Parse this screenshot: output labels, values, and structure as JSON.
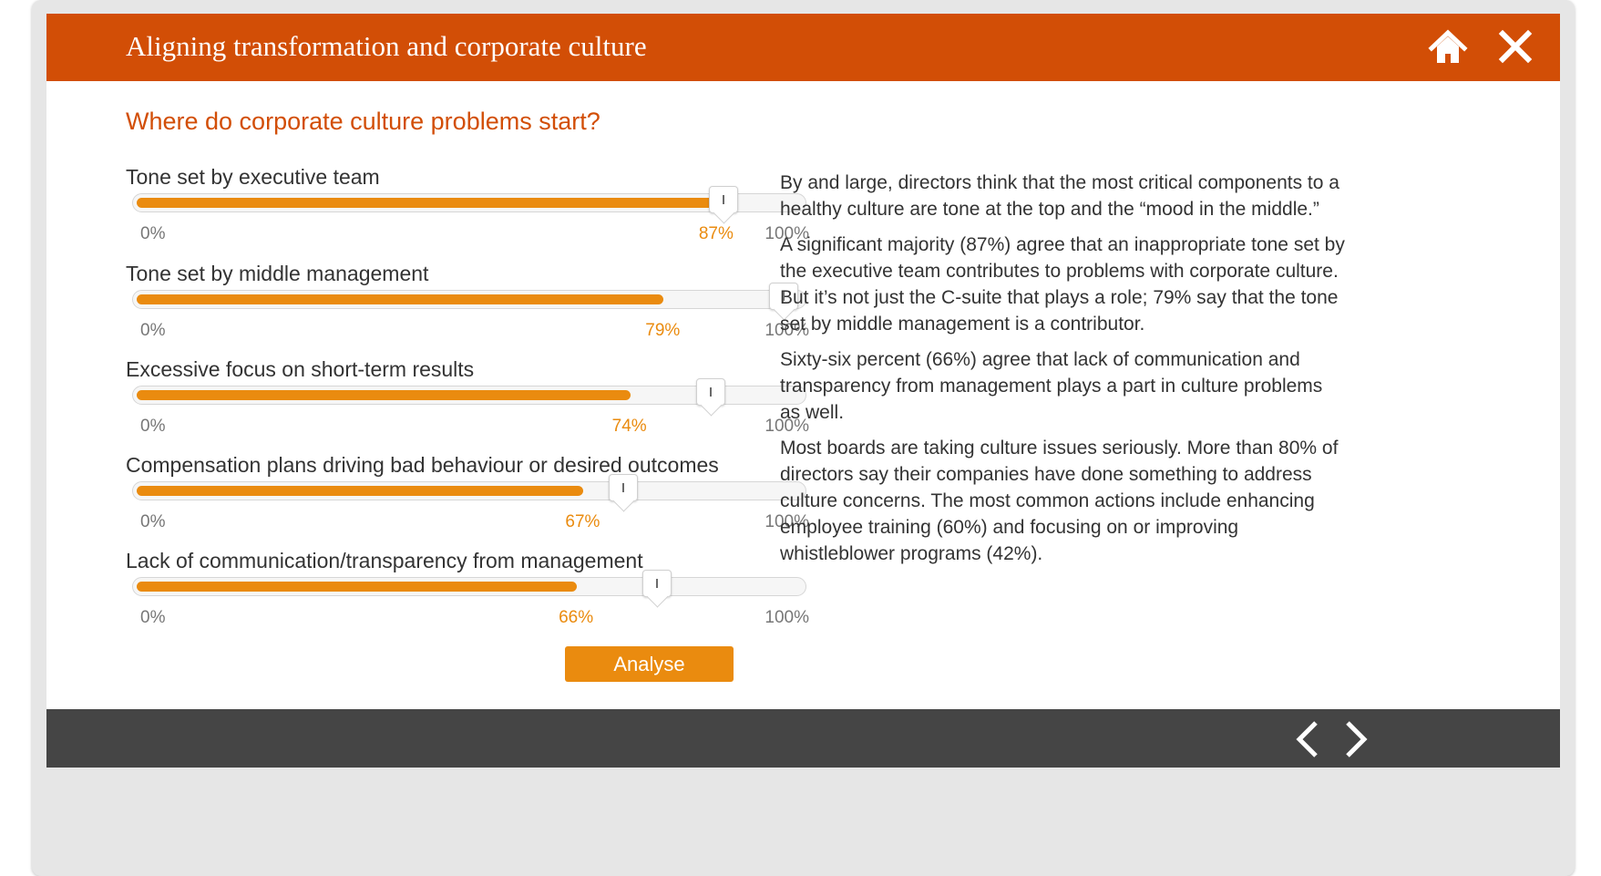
{
  "header": {
    "title": "Aligning transformation and corporate culture"
  },
  "icons": {
    "home": "home-icon",
    "close": "close-icon",
    "prev": "chevron-left-icon",
    "next": "chevron-right-icon"
  },
  "colors": {
    "brand": "#d24e06",
    "accent": "#ea8b0f",
    "footer": "#454545"
  },
  "main": {
    "question": "Where do corporate culture problems start?",
    "sliders": [
      {
        "label": "Tone set by executive team",
        "min_label": "0%",
        "max_label": "100%",
        "value_label": "87%",
        "value": 87,
        "handle_value": 88
      },
      {
        "label": "Tone set by middle management",
        "min_label": "0%",
        "max_label": "100%",
        "value_label": "79%",
        "value": 79,
        "handle_value": 97
      },
      {
        "label": "Excessive focus on short-term results",
        "min_label": "0%",
        "max_label": "100%",
        "value_label": "74%",
        "value": 74,
        "handle_value": 86
      },
      {
        "label": "Compensation plans driving bad behaviour or desired outcomes",
        "min_label": "0%",
        "max_label": "100%",
        "value_label": "67%",
        "value": 67,
        "handle_value": 73
      },
      {
        "label": "Lack of communication/transparency from management",
        "min_label": "0%",
        "max_label": "100%",
        "value_label": "66%",
        "value": 66,
        "handle_value": 78
      }
    ],
    "analyse_label": "Analyse",
    "paragraphs": [
      "By and large, directors think that the most critical components to a healthy culture are tone at the top and the “mood in the middle.”",
      "A significant majority (87%) agree that an inappropriate tone set by the executive team contributes to problems with corporate culture. But it’s not just the C-suite that plays a role; 79% say that the tone set by middle management is a contributor.",
      "Sixty-six percent (66%) agree that lack of communication and transparency from management plays a part in culture problems as well.",
      "Most boards are taking culture issues seriously. More than 80% of directors say their companies have done something to address culture concerns. The most common actions include enhancing employee training (60%) and focusing on or improving whistleblower programs (42%)."
    ]
  }
}
